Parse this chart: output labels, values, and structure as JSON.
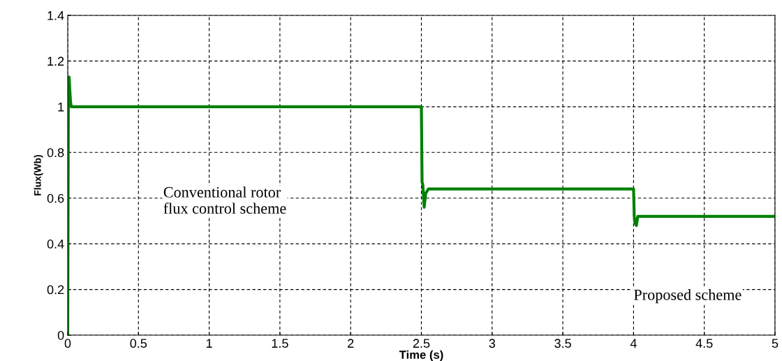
{
  "chart_data": {
    "type": "line",
    "xlabel": "Time (s)",
    "ylabel": "Flux(Wb)",
    "series": [
      {
        "color": "#008000",
        "x": [
          0,
          0.005,
          0.01,
          0.015,
          0.02,
          0.025,
          2.5,
          2.505,
          2.51,
          2.52,
          2.53,
          2.55,
          4.0,
          4.005,
          4.01,
          4.02,
          4.03,
          5
        ],
        "values": [
          0,
          1.13,
          1.13,
          1.07,
          1.02,
          1.0,
          1.0,
          0.67,
          0.66,
          0.56,
          0.62,
          0.64,
          0.64,
          0.52,
          0.49,
          0.48,
          0.52,
          0.52
        ]
      }
    ],
    "xlim": [
      0,
      5
    ],
    "ylim": [
      0,
      1.4
    ],
    "xticks": [
      0,
      0.5,
      1,
      1.5,
      2,
      2.5,
      3,
      3.5,
      4,
      4.5,
      5
    ],
    "yticks": [
      0,
      0.2,
      0.4,
      0.6,
      0.8,
      1,
      1.2,
      1.4
    ],
    "grid": true,
    "line_style": "solid",
    "marker": "none",
    "annotations": [
      "Conventional rotor\nflux control scheme",
      "Proposed scheme"
    ]
  }
}
